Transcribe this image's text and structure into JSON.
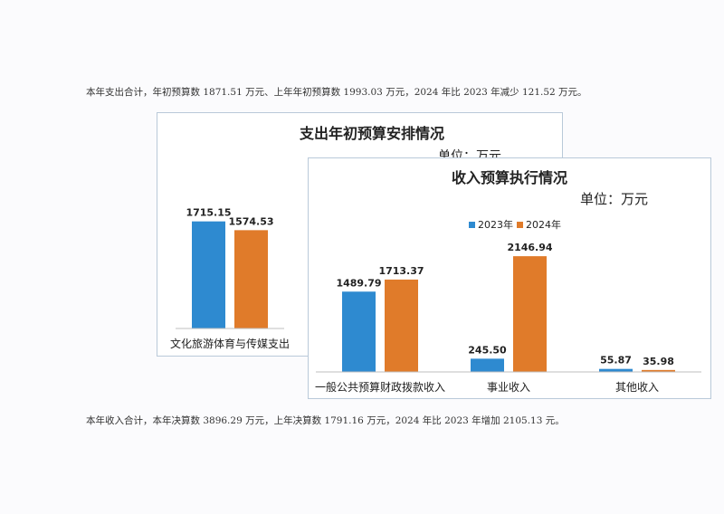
{
  "paragraphs": {
    "expenditure": "本年支出合计，年初预算数 1871.51 万元、上年年初预算数 1993.03 万元，2024 年比 2023 年减少 121.52 万元。",
    "income": "本年收入合计，本年决算数 3896.29 万元，上年决算数 1791.16 万元，2024 年比 2023 年增加 2105.13 元。"
  },
  "colors": {
    "y2023": "#2e8ad0",
    "y2024": "#e07b2a"
  },
  "chart_data": [
    {
      "type": "bar",
      "title": "支出年初预算安排情况",
      "subtitle": "单位：万元",
      "categories": [
        "文化旅游体育与传媒支出"
      ],
      "series": [
        {
          "values": [
            1715.15
          ]
        },
        {
          "values": [
            1574.53
          ]
        }
      ],
      "data_labels": [
        [
          "1715.15"
        ],
        [
          "1574.53"
        ]
      ],
      "ylim": [
        0,
        2000
      ],
      "grid": false
    },
    {
      "type": "bar",
      "title": "收入预算执行情况",
      "subtitle": "单位：万元",
      "legend_position": "top",
      "categories": [
        "一般公共预算财政拨款收入",
        "事业收入",
        "其他收入"
      ],
      "series": [
        {
          "name": "2023年",
          "values": [
            1489.79,
            245.5,
            55.87
          ]
        },
        {
          "name": "2024年",
          "values": [
            1713.37,
            2146.94,
            35.98
          ]
        }
      ],
      "data_labels": [
        [
          "1489.79",
          "245.50",
          "55.87"
        ],
        [
          "1713.37",
          "2146.94",
          "35.98"
        ]
      ],
      "ylim": [
        0,
        2300
      ],
      "grid": false
    }
  ]
}
